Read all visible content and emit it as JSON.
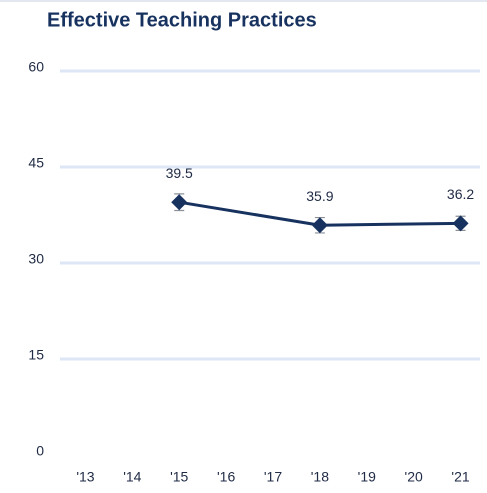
{
  "chart_data": {
    "type": "line",
    "title": "Effective Teaching Practices",
    "x": [
      2015,
      2018,
      2021
    ],
    "series": [
      {
        "name": "Effective Teaching Practices",
        "color": "#17325f",
        "values": [
          39.5,
          35.9,
          36.2
        ],
        "errors": [
          1.3,
          1.2,
          1.1
        ]
      }
    ],
    "xlim": [
      2012.5,
      2021.5
    ],
    "xticks": [
      {
        "value": 2013,
        "label": "'13"
      },
      {
        "value": 2014,
        "label": "'14"
      },
      {
        "value": 2015,
        "label": "'15"
      },
      {
        "value": 2016,
        "label": "'16"
      },
      {
        "value": 2017,
        "label": "'17"
      },
      {
        "value": 2018,
        "label": "'18"
      },
      {
        "value": 2019,
        "label": "'19"
      },
      {
        "value": 2020,
        "label": "'20"
      },
      {
        "value": 2021,
        "label": "'21"
      }
    ],
    "ylim": [
      0,
      60
    ],
    "yticks": [
      0,
      15,
      30,
      45,
      60
    ],
    "grid": true
  }
}
